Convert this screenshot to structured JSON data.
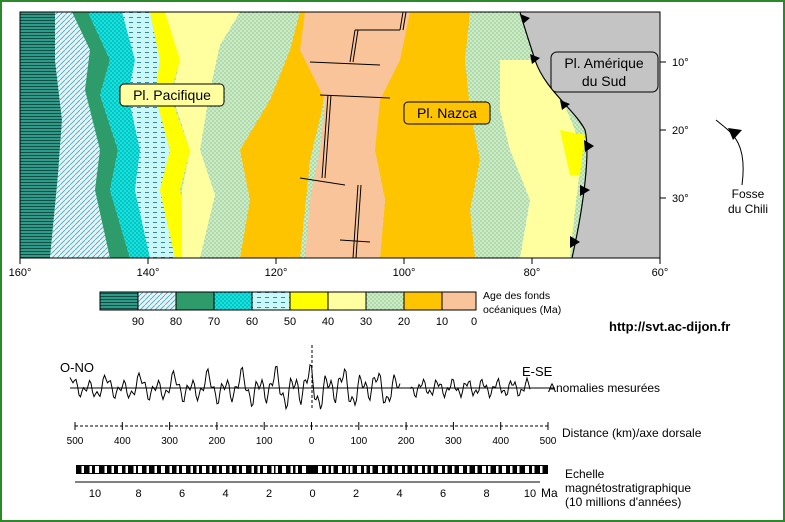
{
  "map": {
    "plates": {
      "pacific": "Pl. Pacifique",
      "nazca": "Pl. Nazca",
      "south_america_line1": "Pl. Amérique",
      "south_america_line2": "du Sud"
    },
    "longitude_ticks": [
      "160°",
      "140°",
      "120°",
      "100°",
      "80°",
      "60°"
    ],
    "latitude_ticks": [
      "10°",
      "20°",
      "30°"
    ],
    "trench_label_line1": "Fosse",
    "trench_label_line2": "du Chili"
  },
  "legend": {
    "title_line1": "Age des fonds",
    "title_line2": "océaniques (Ma)",
    "ticks": [
      "90",
      "80",
      "70",
      "60",
      "50",
      "40",
      "30",
      "20",
      "10",
      "0"
    ]
  },
  "colors": {
    "age_0_10": "#f9c49a",
    "age_10_20": "#ffc400",
    "age_20_30": "#cbecc4",
    "age_30_40": "#ffffa0",
    "age_40_50": "#ffff00",
    "age_50_60": "#c8f8f8",
    "age_60_70": "#12e4e0",
    "age_70_80": "#2e9b6a",
    "age_80_90": "#d8f0f4",
    "age_90_100": "#2e9b8a",
    "continent": "#c4c4c4",
    "frame": "#2a8a2a"
  },
  "website": "http://svt.ac-dijon.fr",
  "profile": {
    "west_label": "O-NO",
    "east_label": "E-SE",
    "anomalies_label": "Anomalies mesurées",
    "distance_label": "Distance (km)/axe dorsale",
    "distance_ticks": [
      "500",
      "400",
      "300",
      "200",
      "100",
      "0",
      "100",
      "200",
      "300",
      "400",
      "500"
    ]
  },
  "timescale": {
    "label_line1": "Echelle",
    "label_line2": "magnétostratigraphique",
    "label_line3": "(10 millions d'années)",
    "unit": "Ma",
    "ticks": [
      "10",
      "8",
      "6",
      "4",
      "2",
      "0",
      "2",
      "4",
      "6",
      "8",
      "10"
    ]
  }
}
